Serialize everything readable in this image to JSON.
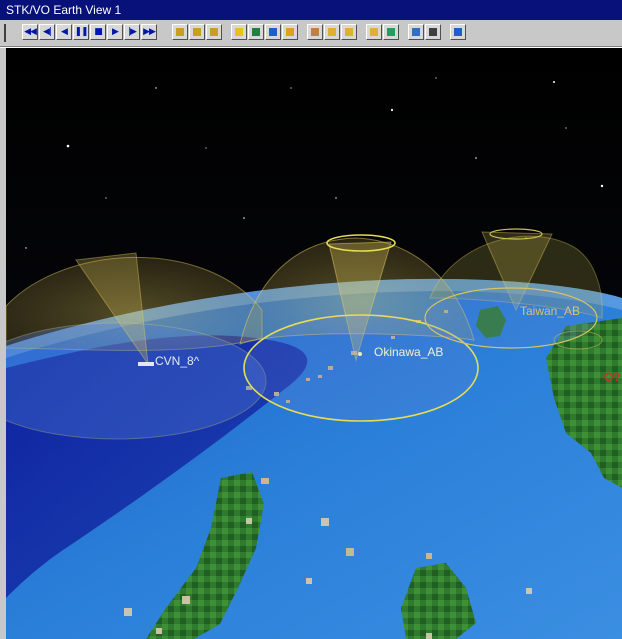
{
  "window": {
    "title": "STK/VO Earth View 1"
  },
  "toolbar": {
    "animation_controls": [
      {
        "icon": "step-back-double-icon",
        "glyph": "◀◀",
        "name": "reset-button"
      },
      {
        "icon": "step-back-frame-icon",
        "glyph": "◀|",
        "name": "step-back-button"
      },
      {
        "icon": "play-reverse-icon",
        "glyph": "◀",
        "name": "play-reverse-button"
      },
      {
        "icon": "pause-icon",
        "glyph": "❚❚",
        "name": "pause-button"
      },
      {
        "icon": "stop-icon",
        "glyph": "■",
        "name": "stop-button"
      },
      {
        "icon": "play-forward-icon",
        "glyph": "▶",
        "name": "play-forward-button"
      },
      {
        "icon": "step-forward-frame-icon",
        "glyph": "|▶",
        "name": "step-forward-button"
      },
      {
        "icon": "fast-forward-icon",
        "glyph": "▶▶",
        "name": "fast-forward-button"
      }
    ],
    "tools": [
      {
        "icon": "home-view-icon",
        "color": "#c8a020"
      },
      {
        "icon": "zoom-box-icon",
        "color": "#c8a020"
      },
      {
        "icon": "zoom-out-icon",
        "color": "#c8a020"
      },
      {
        "icon": "view-from-icon",
        "color": "#e8c020"
      },
      {
        "icon": "object-globe-icon",
        "color": "#208040"
      },
      {
        "icon": "orbit-view-icon",
        "color": "#2060c0"
      },
      {
        "icon": "map-globe-icon",
        "color": "#e0a020"
      },
      {
        "icon": "picture-icon",
        "color": "#c08040"
      },
      {
        "icon": "reports-icon",
        "color": "#e0b030"
      },
      {
        "icon": "graphs-icon",
        "color": "#e0b030"
      },
      {
        "icon": "properties-icon",
        "color": "#e0b030"
      },
      {
        "icon": "globe-tool-icon",
        "color": "#20a060"
      },
      {
        "icon": "earth-icon",
        "color": "#3070c0"
      },
      {
        "icon": "camera-icon",
        "color": "#404040"
      },
      {
        "icon": "layers-icon",
        "color": "#2060c0"
      }
    ]
  },
  "scene": {
    "colors": {
      "space": "#050505",
      "ocean": "#2a7fd8",
      "sensor_dome": "#e8d060",
      "coverage_ring": "#e6dd55"
    },
    "labels": {
      "okinawa": "Okinawa_AB",
      "taiwan": "Taiwan_AB",
      "cvn": "CVN_8^",
      "partial": "O?"
    }
  }
}
